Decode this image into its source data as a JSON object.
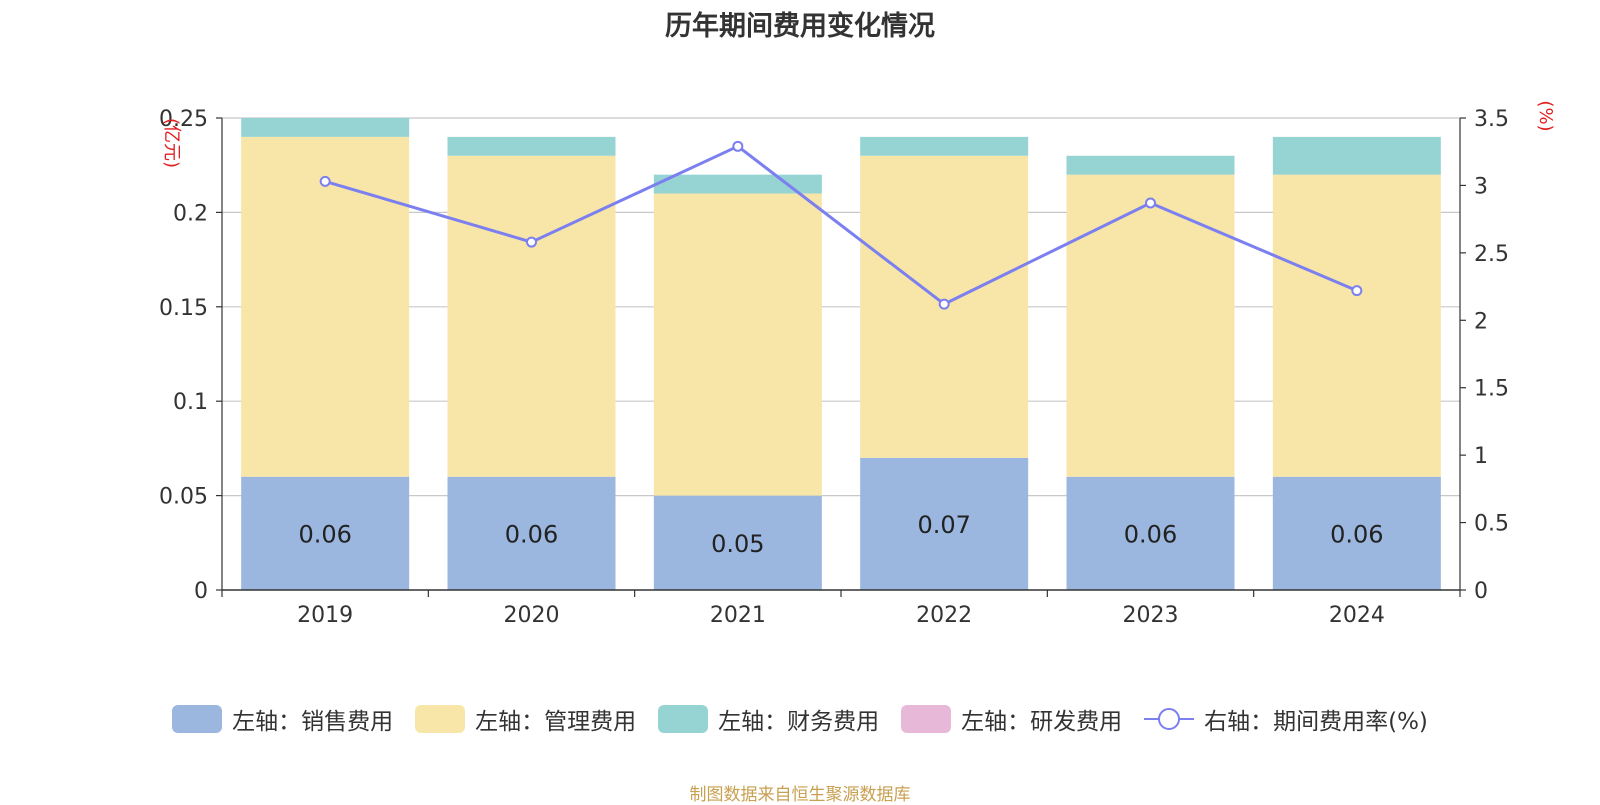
{
  "chart_data": {
    "type": "bar",
    "title": "历年期间费用变化情况",
    "categories": [
      "2019",
      "2020",
      "2021",
      "2022",
      "2023",
      "2024"
    ],
    "left_axis": {
      "unit_label": "(亿元)",
      "range": [
        0,
        0.25
      ],
      "ticks": [
        "0",
        "0.05",
        "0.1",
        "0.15",
        "0.2",
        "0.25"
      ]
    },
    "right_axis": {
      "unit_label": "(%)",
      "range": [
        0,
        3.5
      ],
      "ticks": [
        "0",
        "0.5",
        "1",
        "1.5",
        "2",
        "2.5",
        "3",
        "3.5"
      ]
    },
    "stacked": true,
    "series": [
      {
        "name": "左轴：销售费用",
        "type": "bar",
        "color": "#9bb7e0",
        "values": [
          0.06,
          0.06,
          0.05,
          0.07,
          0.06,
          0.06
        ],
        "labels": [
          "0.06",
          "0.06",
          "0.05",
          "0.07",
          "0.06",
          "0.06"
        ]
      },
      {
        "name": "左轴：管理费用",
        "type": "bar",
        "color": "#f7e6a8",
        "values": [
          0.18,
          0.17,
          0.16,
          0.16,
          0.16,
          0.16
        ]
      },
      {
        "name": "左轴：财务费用",
        "type": "bar",
        "color": "#96d4d4",
        "values": [
          0.01,
          0.01,
          0.01,
          0.01,
          0.01,
          0.02
        ]
      },
      {
        "name": "左轴：研发费用",
        "type": "bar",
        "color": "#e8b8d8",
        "values": [
          0,
          0,
          0,
          0,
          0,
          0
        ]
      },
      {
        "name": "右轴：期间费用率(%)",
        "type": "line",
        "color": "#7b7ff0",
        "values": [
          3.03,
          2.58,
          3.29,
          2.12,
          2.87,
          2.22
        ]
      }
    ],
    "grid": true,
    "legend_position": "bottom"
  },
  "source_text": "制图数据来自恒生聚源数据库"
}
